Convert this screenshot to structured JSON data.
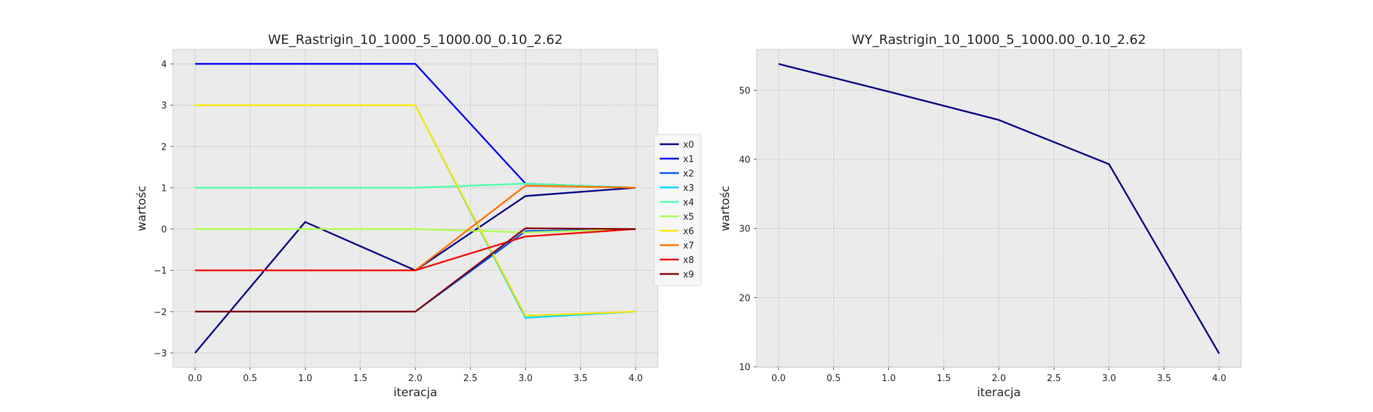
{
  "chart_data": [
    {
      "type": "line",
      "title": "WE_Rastrigin_10_1000_5_1000.00_0.10_2.62",
      "xlabel": "iteracja",
      "ylabel": "wartośc",
      "x": [
        0,
        1,
        2,
        3,
        4
      ],
      "xticks": [
        "0.0",
        "0.5",
        "1.0",
        "1.5",
        "2.0",
        "2.5",
        "3.0",
        "3.5",
        "4.0"
      ],
      "yticks": [
        "−3",
        "−2",
        "−1",
        "0",
        "1",
        "2",
        "3",
        "4"
      ],
      "xlim": [
        -0.2,
        4.2
      ],
      "ylim": [
        -3.35,
        4.35
      ],
      "grid": true,
      "legend": "right-outside",
      "series": [
        {
          "name": "x0",
          "color": "#000080",
          "values": [
            -3,
            0.17,
            -1,
            0.8,
            1
          ]
        },
        {
          "name": "x1",
          "color": "#0000f1",
          "values": [
            4,
            4,
            4,
            1.1,
            1
          ]
        },
        {
          "name": "x2",
          "color": "#004dff",
          "values": [
            -2,
            -2,
            -2,
            -0.05,
            0
          ]
        },
        {
          "name": "x3",
          "color": "#00d5ff",
          "values": [
            3,
            3,
            3,
            -2.15,
            -2
          ]
        },
        {
          "name": "x4",
          "color": "#4dffaa",
          "values": [
            1,
            1,
            1,
            1.1,
            1
          ]
        },
        {
          "name": "x5",
          "color": "#aaff4d",
          "values": [
            0,
            0,
            0,
            -0.08,
            0
          ]
        },
        {
          "name": "x6",
          "color": "#ffe600",
          "values": [
            3,
            3,
            3,
            -2.1,
            -2
          ]
        },
        {
          "name": "x7",
          "color": "#ff6f00",
          "values": [
            -1,
            -1,
            -1,
            1.05,
            1
          ]
        },
        {
          "name": "x8",
          "color": "#f10800",
          "values": [
            -1,
            -1,
            -1,
            -0.18,
            0
          ]
        },
        {
          "name": "x9",
          "color": "#800000",
          "values": [
            -2,
            -2,
            -2,
            0.02,
            0
          ]
        }
      ]
    },
    {
      "type": "line",
      "title": "WY_Rastrigin_10_1000_5_1000.00_0.10_2.62",
      "xlabel": "iteracja",
      "ylabel": "wartośc",
      "x": [
        0,
        1,
        2,
        3,
        4
      ],
      "xticks": [
        "0.0",
        "0.5",
        "1.0",
        "1.5",
        "2.0",
        "2.5",
        "3.0",
        "3.5",
        "4.0"
      ],
      "yticks": [
        "10",
        "20",
        "30",
        "40",
        "50"
      ],
      "xlim": [
        -0.2,
        4.2
      ],
      "ylim": [
        9.9,
        55.9
      ],
      "grid": true,
      "series": [
        {
          "name": "",
          "color": "#000080",
          "values": [
            53.8,
            49.8,
            45.7,
            39.3,
            11.9
          ]
        }
      ]
    }
  ]
}
